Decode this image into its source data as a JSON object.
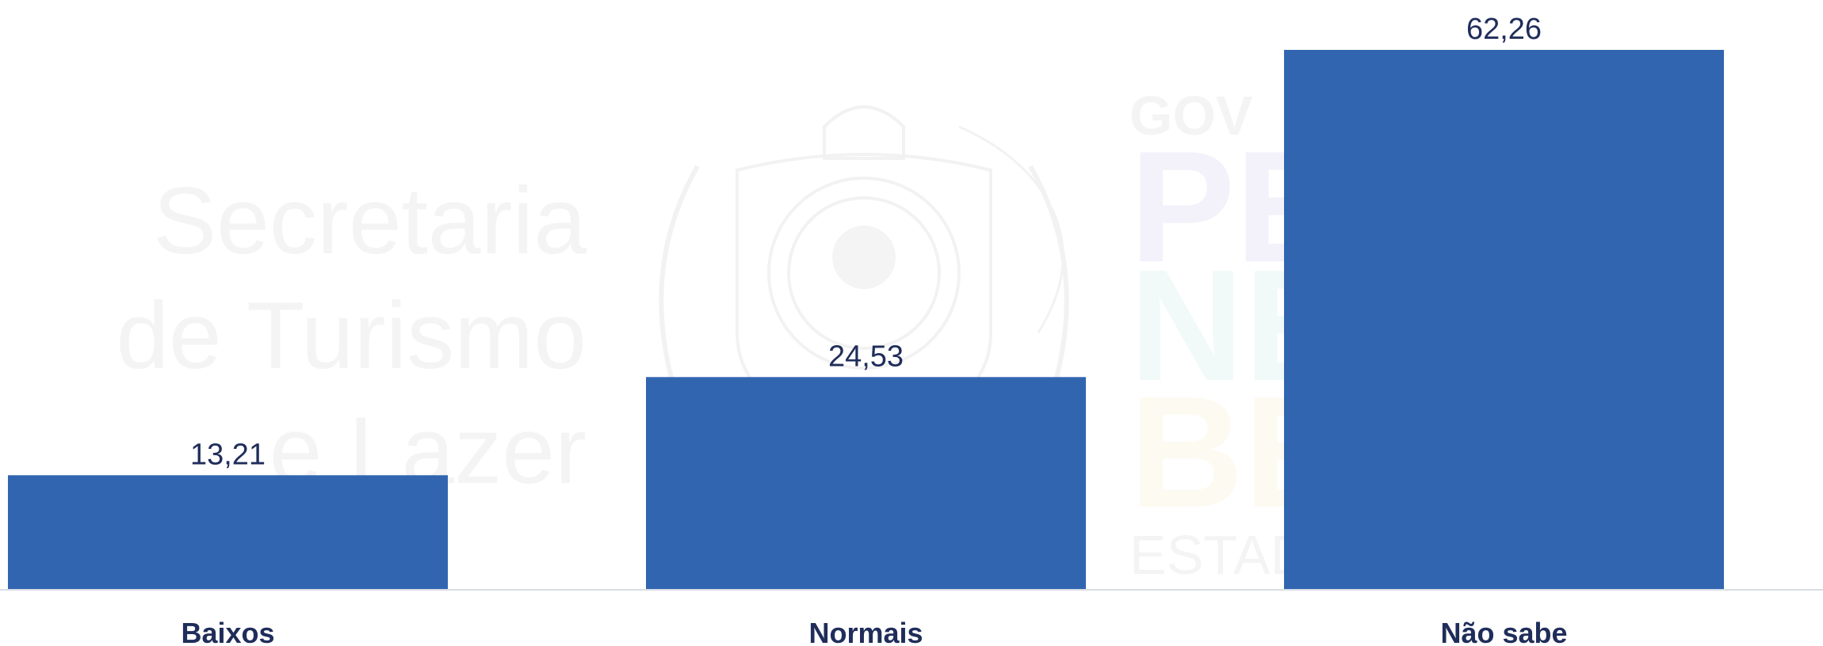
{
  "watermark": {
    "lines": [
      "Secretaria",
      "de Turismo",
      "e Lazer"
    ],
    "brand_fragments": [
      "GOV",
      "PE",
      "NE",
      "BE",
      "ESTAD"
    ]
  },
  "chart_data": {
    "type": "bar",
    "categories": [
      "Baixos",
      "Normais",
      "Não sabe"
    ],
    "values": [
      13.21,
      24.53,
      62.26
    ],
    "value_labels": [
      "13,21",
      "24,53",
      "62,26"
    ],
    "title": "",
    "xlabel": "",
    "ylabel": "",
    "ylim": [
      0,
      62.26
    ],
    "grid": false,
    "legend": "none",
    "bar_color": "#3265b0",
    "label_color": "#1f2d5a",
    "axis_color": "#d9dde6"
  }
}
